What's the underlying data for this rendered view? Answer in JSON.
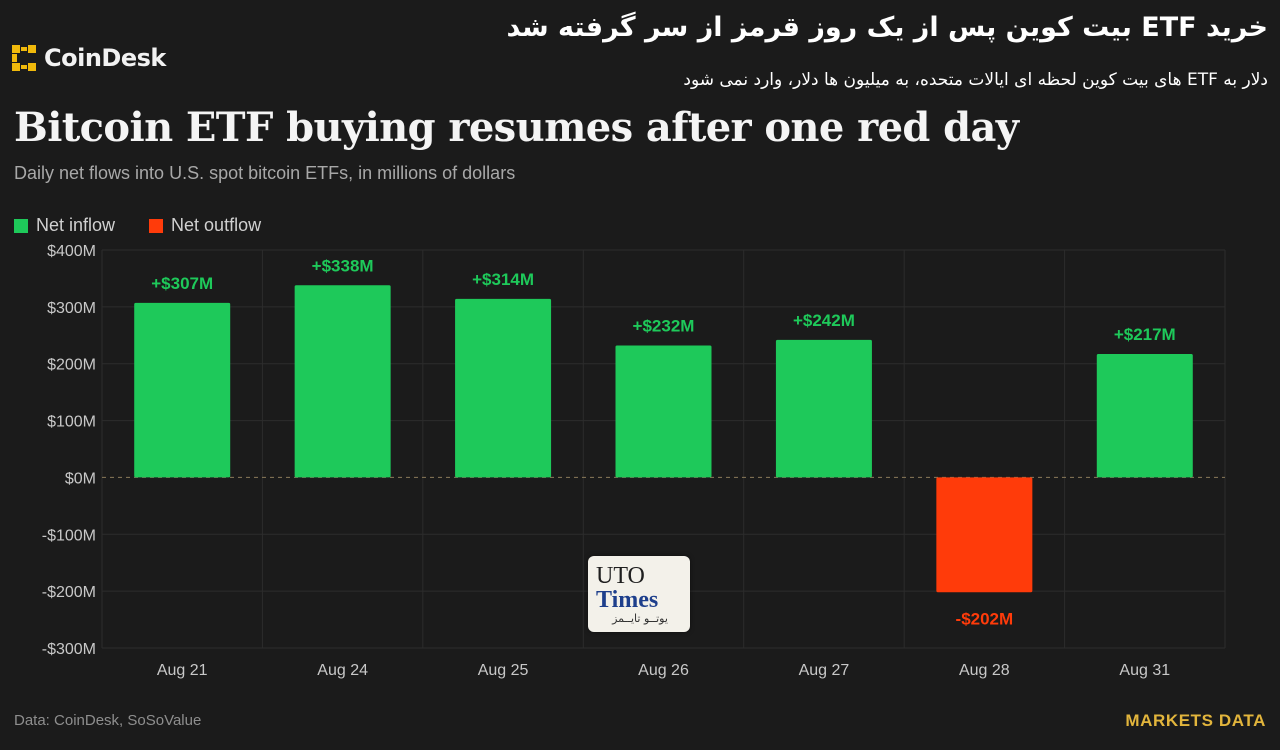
{
  "header": {
    "logo_text": "CoinDesk",
    "fa_title": "خرید ETF بیت کوین پس از یک روز قرمز از سر گرفته شد",
    "fa_subtitle": "دلار به ETF های بیت کوین لحظه ای ایالات متحده، به میلیون ها دلار، وارد نمی شود"
  },
  "colors": {
    "inflow": "#1ec95a",
    "outflow": "#ff3b0a",
    "brand": "#e2b53c",
    "logo": "#f0b90b"
  },
  "chart_data": {
    "type": "bar",
    "title": "Bitcoin ETF buying resumes after one red day",
    "subtitle": "Daily net flows into U.S. spot bitcoin ETFs, in millions of dollars",
    "categories": [
      "Aug 21",
      "Aug 24",
      "Aug 25",
      "Aug 26",
      "Aug 27",
      "Aug 28",
      "Aug 31"
    ],
    "values": [
      307,
      338,
      314,
      232,
      242,
      -202,
      217
    ],
    "data_labels": [
      "+$307M",
      "+$338M",
      "+$314M",
      "+$232M",
      "+$242M",
      "-$202M",
      "+$217M"
    ],
    "legend": [
      "Net inflow",
      "Net outflow"
    ],
    "legend_position": "top-left",
    "ylim": [
      -300,
      400
    ],
    "yticks": [
      400,
      300,
      200,
      100,
      0,
      -100,
      -200,
      -300
    ],
    "ytick_labels": [
      "$400M",
      "$300M",
      "$200M",
      "$100M",
      "$0M",
      "-$100M",
      "-$200M",
      "-$300M"
    ],
    "grid": true,
    "xlabel": "",
    "ylabel": ""
  },
  "footer": {
    "source": "Data: CoinDesk, SoSoValue",
    "brand": "MARKETS DATA"
  },
  "watermark": {
    "line1": "UTO",
    "line2": "Times",
    "line3": "یوتــو تایــمز"
  }
}
